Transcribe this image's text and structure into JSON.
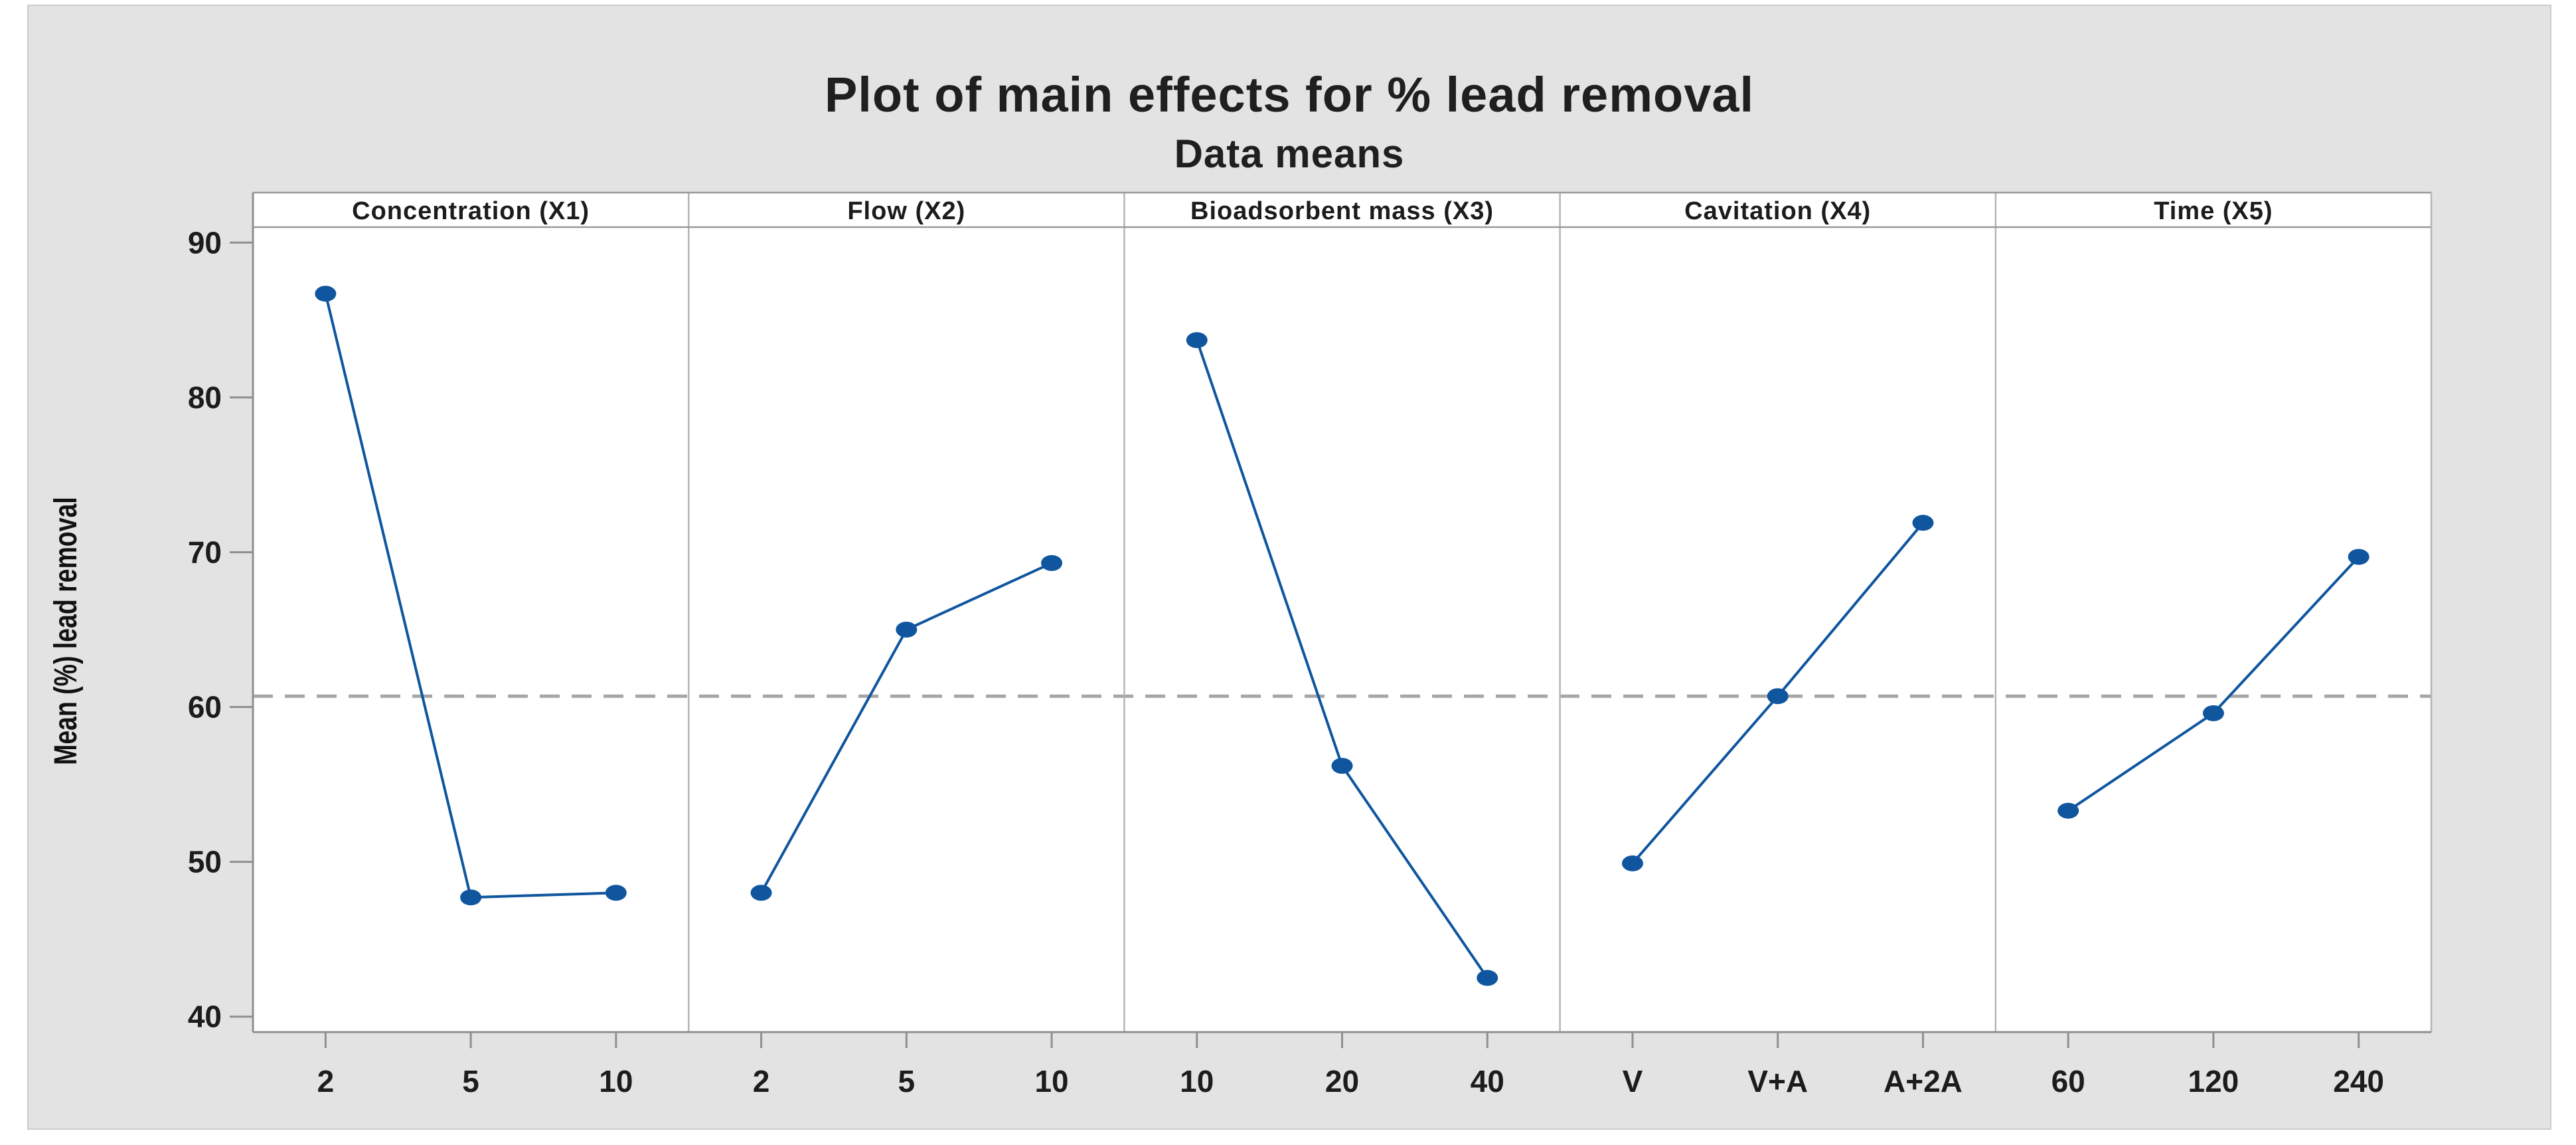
{
  "figure": {
    "title": "Plot of main effects for % lead removal",
    "subtitle": "Data means",
    "ylabel": "Mean (%) lead removal",
    "canvas_bg": "#e3e3e3",
    "canvas_border": "#cccccc",
    "plot_bg": "#ffffff",
    "series_color": "#0f569f",
    "mean_line_color": "#a6a6a6",
    "axis_line_color": "#8f8f8f",
    "border_color": "#9a9a9a",
    "separator_color": "#b5b5b5",
    "text_color": "#1c1c1c"
  },
  "chart_data": {
    "type": "line",
    "title": "Plot of main effects for % lead removal",
    "subtitle": "Data means",
    "xlabel": "",
    "ylabel": "Mean (%) lead removal",
    "ylim": [
      39,
      91
    ],
    "yticks": [
      40,
      50,
      60,
      70,
      80,
      90
    ],
    "grid": "off",
    "legend_position": "none",
    "grand_mean": 60.7,
    "grand_mean_line_style": "dashed",
    "panels": [
      {
        "label": "Concentration (X1)",
        "categories": [
          "2",
          "5",
          "10"
        ],
        "values": [
          86.7,
          47.7,
          48.0
        ]
      },
      {
        "label": "Flow (X2)",
        "categories": [
          "2",
          "5",
          "10"
        ],
        "values": [
          48.0,
          65.0,
          69.3
        ]
      },
      {
        "label": "Bioadsorbent mass (X3)",
        "categories": [
          "10",
          "20",
          "40"
        ],
        "values": [
          83.7,
          56.2,
          42.5
        ]
      },
      {
        "label": "Cavitation (X4)",
        "categories": [
          "V",
          "V+A",
          "A+2A"
        ],
        "values": [
          49.9,
          60.7,
          71.9
        ]
      },
      {
        "label": "Time (X5)",
        "categories": [
          "60",
          "120",
          "240"
        ],
        "values": [
          53.3,
          59.6,
          69.7
        ]
      }
    ]
  }
}
